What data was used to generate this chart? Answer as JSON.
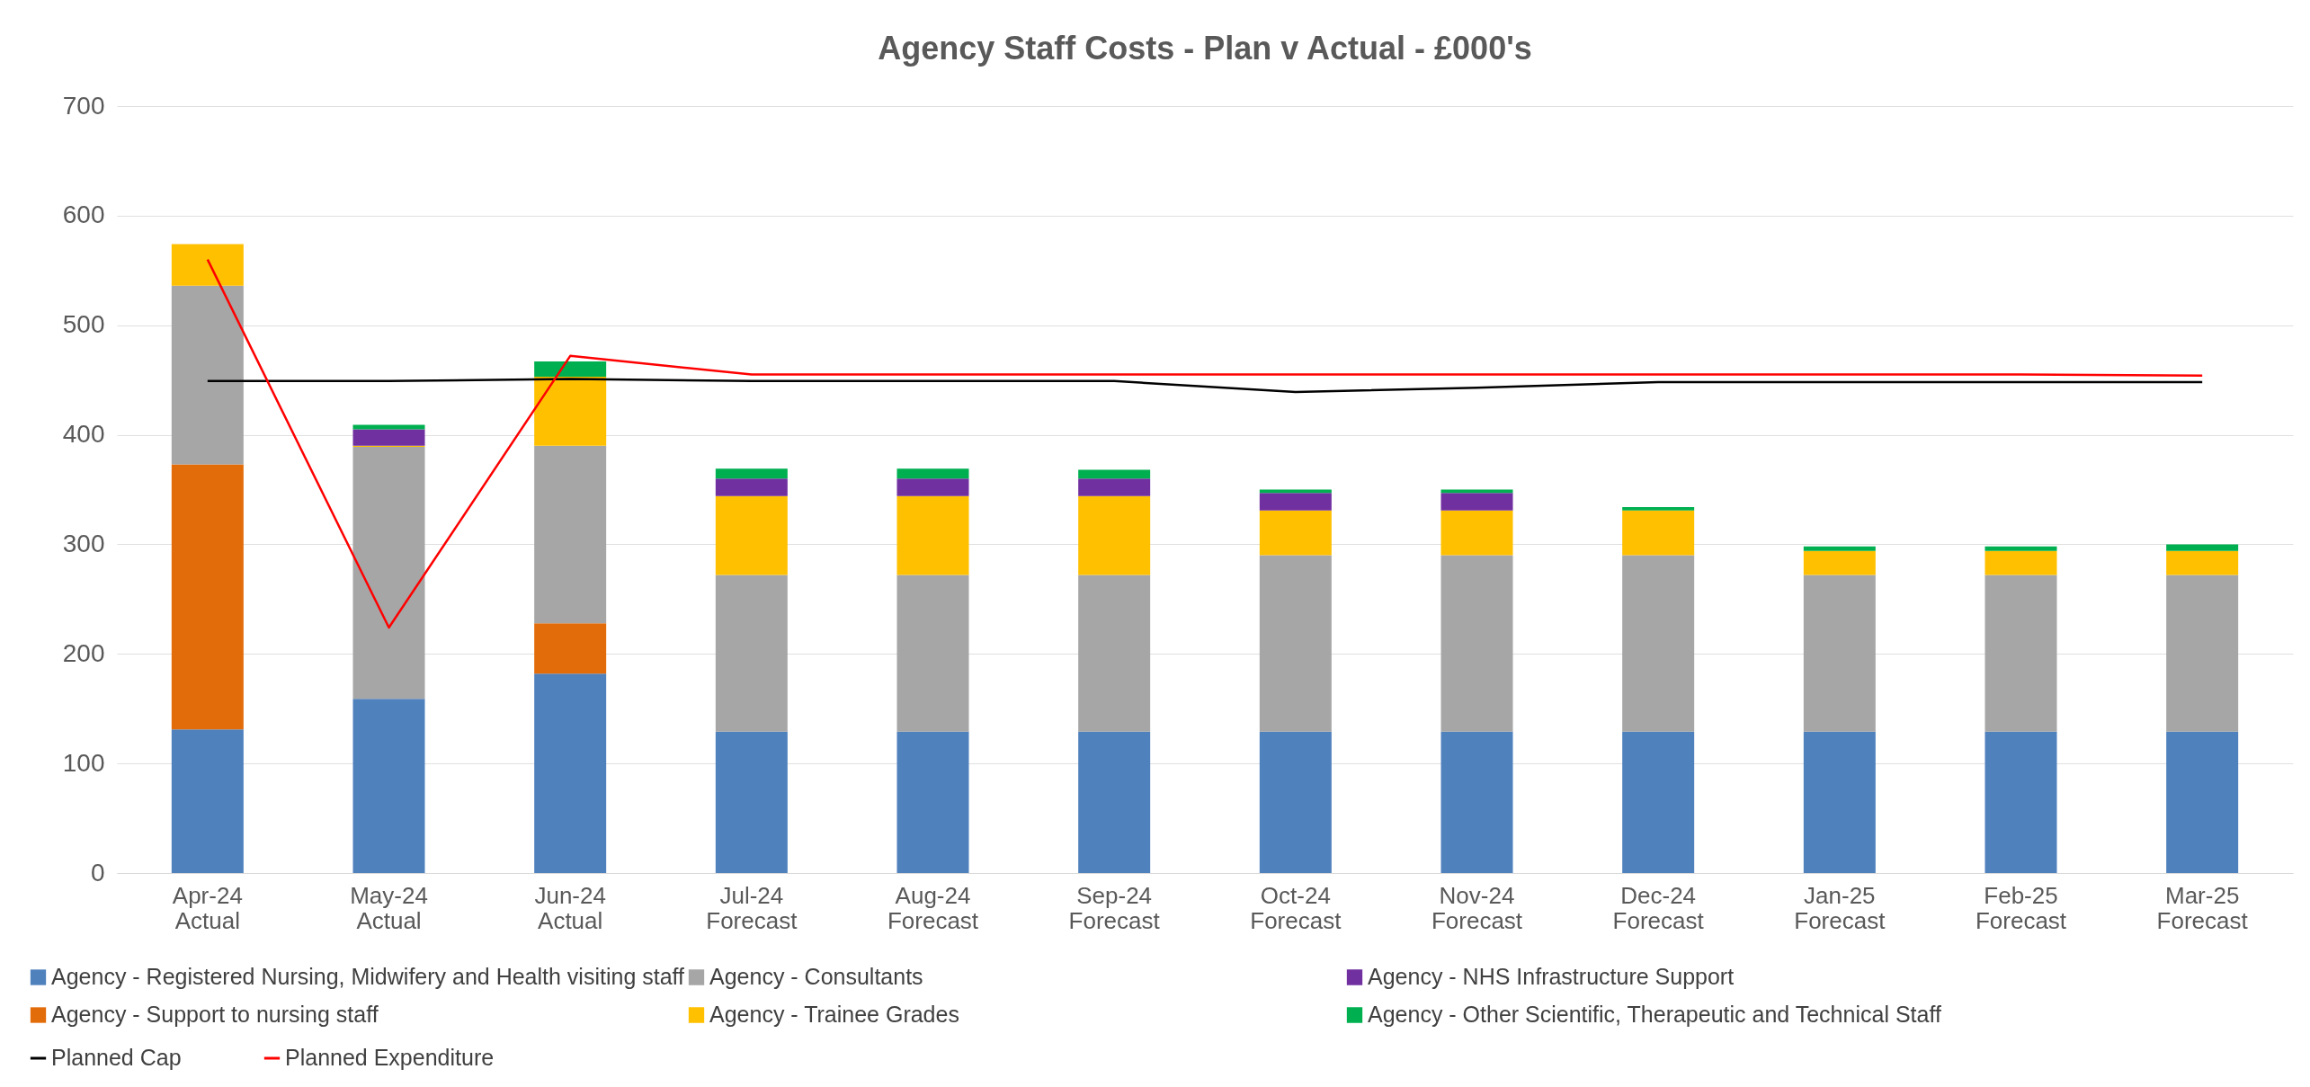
{
  "chart_data": {
    "type": "bar",
    "title": "Agency Staff Costs - Plan v Actual - £000's",
    "categories": [
      "Apr-24 Actual",
      "May-24 Actual",
      "Jun-24 Actual",
      "Jul-24 Forecast",
      "Aug-24 Forecast",
      "Sep-24 Forecast",
      "Oct-24 Forecast",
      "Nov-24 Forecast",
      "Dec-24 Forecast",
      "Jan-25 Forecast",
      "Feb-25 Forecast",
      "Mar-25 Forecast"
    ],
    "stacked": true,
    "series": [
      {
        "name": "Agency - Registered Nursing, Midwifery and Health visiting staff",
        "color": "#4f81bd",
        "values": [
          131,
          159,
          182,
          129,
          129,
          129,
          129,
          129,
          129,
          129,
          129,
          129
        ]
      },
      {
        "name": "Agency - Support to nursing staff",
        "color": "#e36c0a",
        "values": [
          242,
          null,
          46,
          null,
          null,
          null,
          null,
          null,
          null,
          null,
          null,
          null
        ]
      },
      {
        "name": "Agency - Consultants",
        "color": "#a6a6a6",
        "values": [
          163,
          230,
          162,
          143,
          143,
          143,
          161,
          161,
          161,
          143,
          143,
          143
        ]
      },
      {
        "name": "Agency - Trainee Grades",
        "color": "#ffc000",
        "values": [
          38,
          1,
          63,
          72,
          72,
          72,
          41,
          41,
          41,
          22,
          22,
          22
        ]
      },
      {
        "name": "Agency - NHS Infrastructure Support",
        "color": "#7030a0",
        "values": [
          null,
          15,
          null,
          16,
          16,
          16,
          16,
          16,
          null,
          null,
          null,
          null
        ]
      },
      {
        "name": "Agency - Other Scientific, Therapeutic and Technical Staff",
        "color": "#00b050",
        "values": [
          null,
          4,
          14,
          9,
          9,
          8,
          3,
          3,
          3,
          4,
          4,
          6
        ]
      },
      {
        "name": "Planned Cap",
        "type": "line",
        "color": "#000000",
        "values": [
          449,
          449,
          451,
          449,
          449,
          449,
          439,
          443,
          448,
          448,
          448,
          448
        ]
      },
      {
        "name": "Planned Expenditure",
        "type": "line",
        "color": "#ff0000",
        "values": [
          560,
          224,
          472,
          455,
          455,
          455,
          455,
          455,
          455,
          455,
          455,
          454
        ]
      }
    ],
    "ylim": [
      0,
      700
    ],
    "yticks": [
      0,
      100,
      200,
      300,
      400,
      500,
      600,
      700
    ],
    "grid": "y",
    "legend": "bottom"
  }
}
